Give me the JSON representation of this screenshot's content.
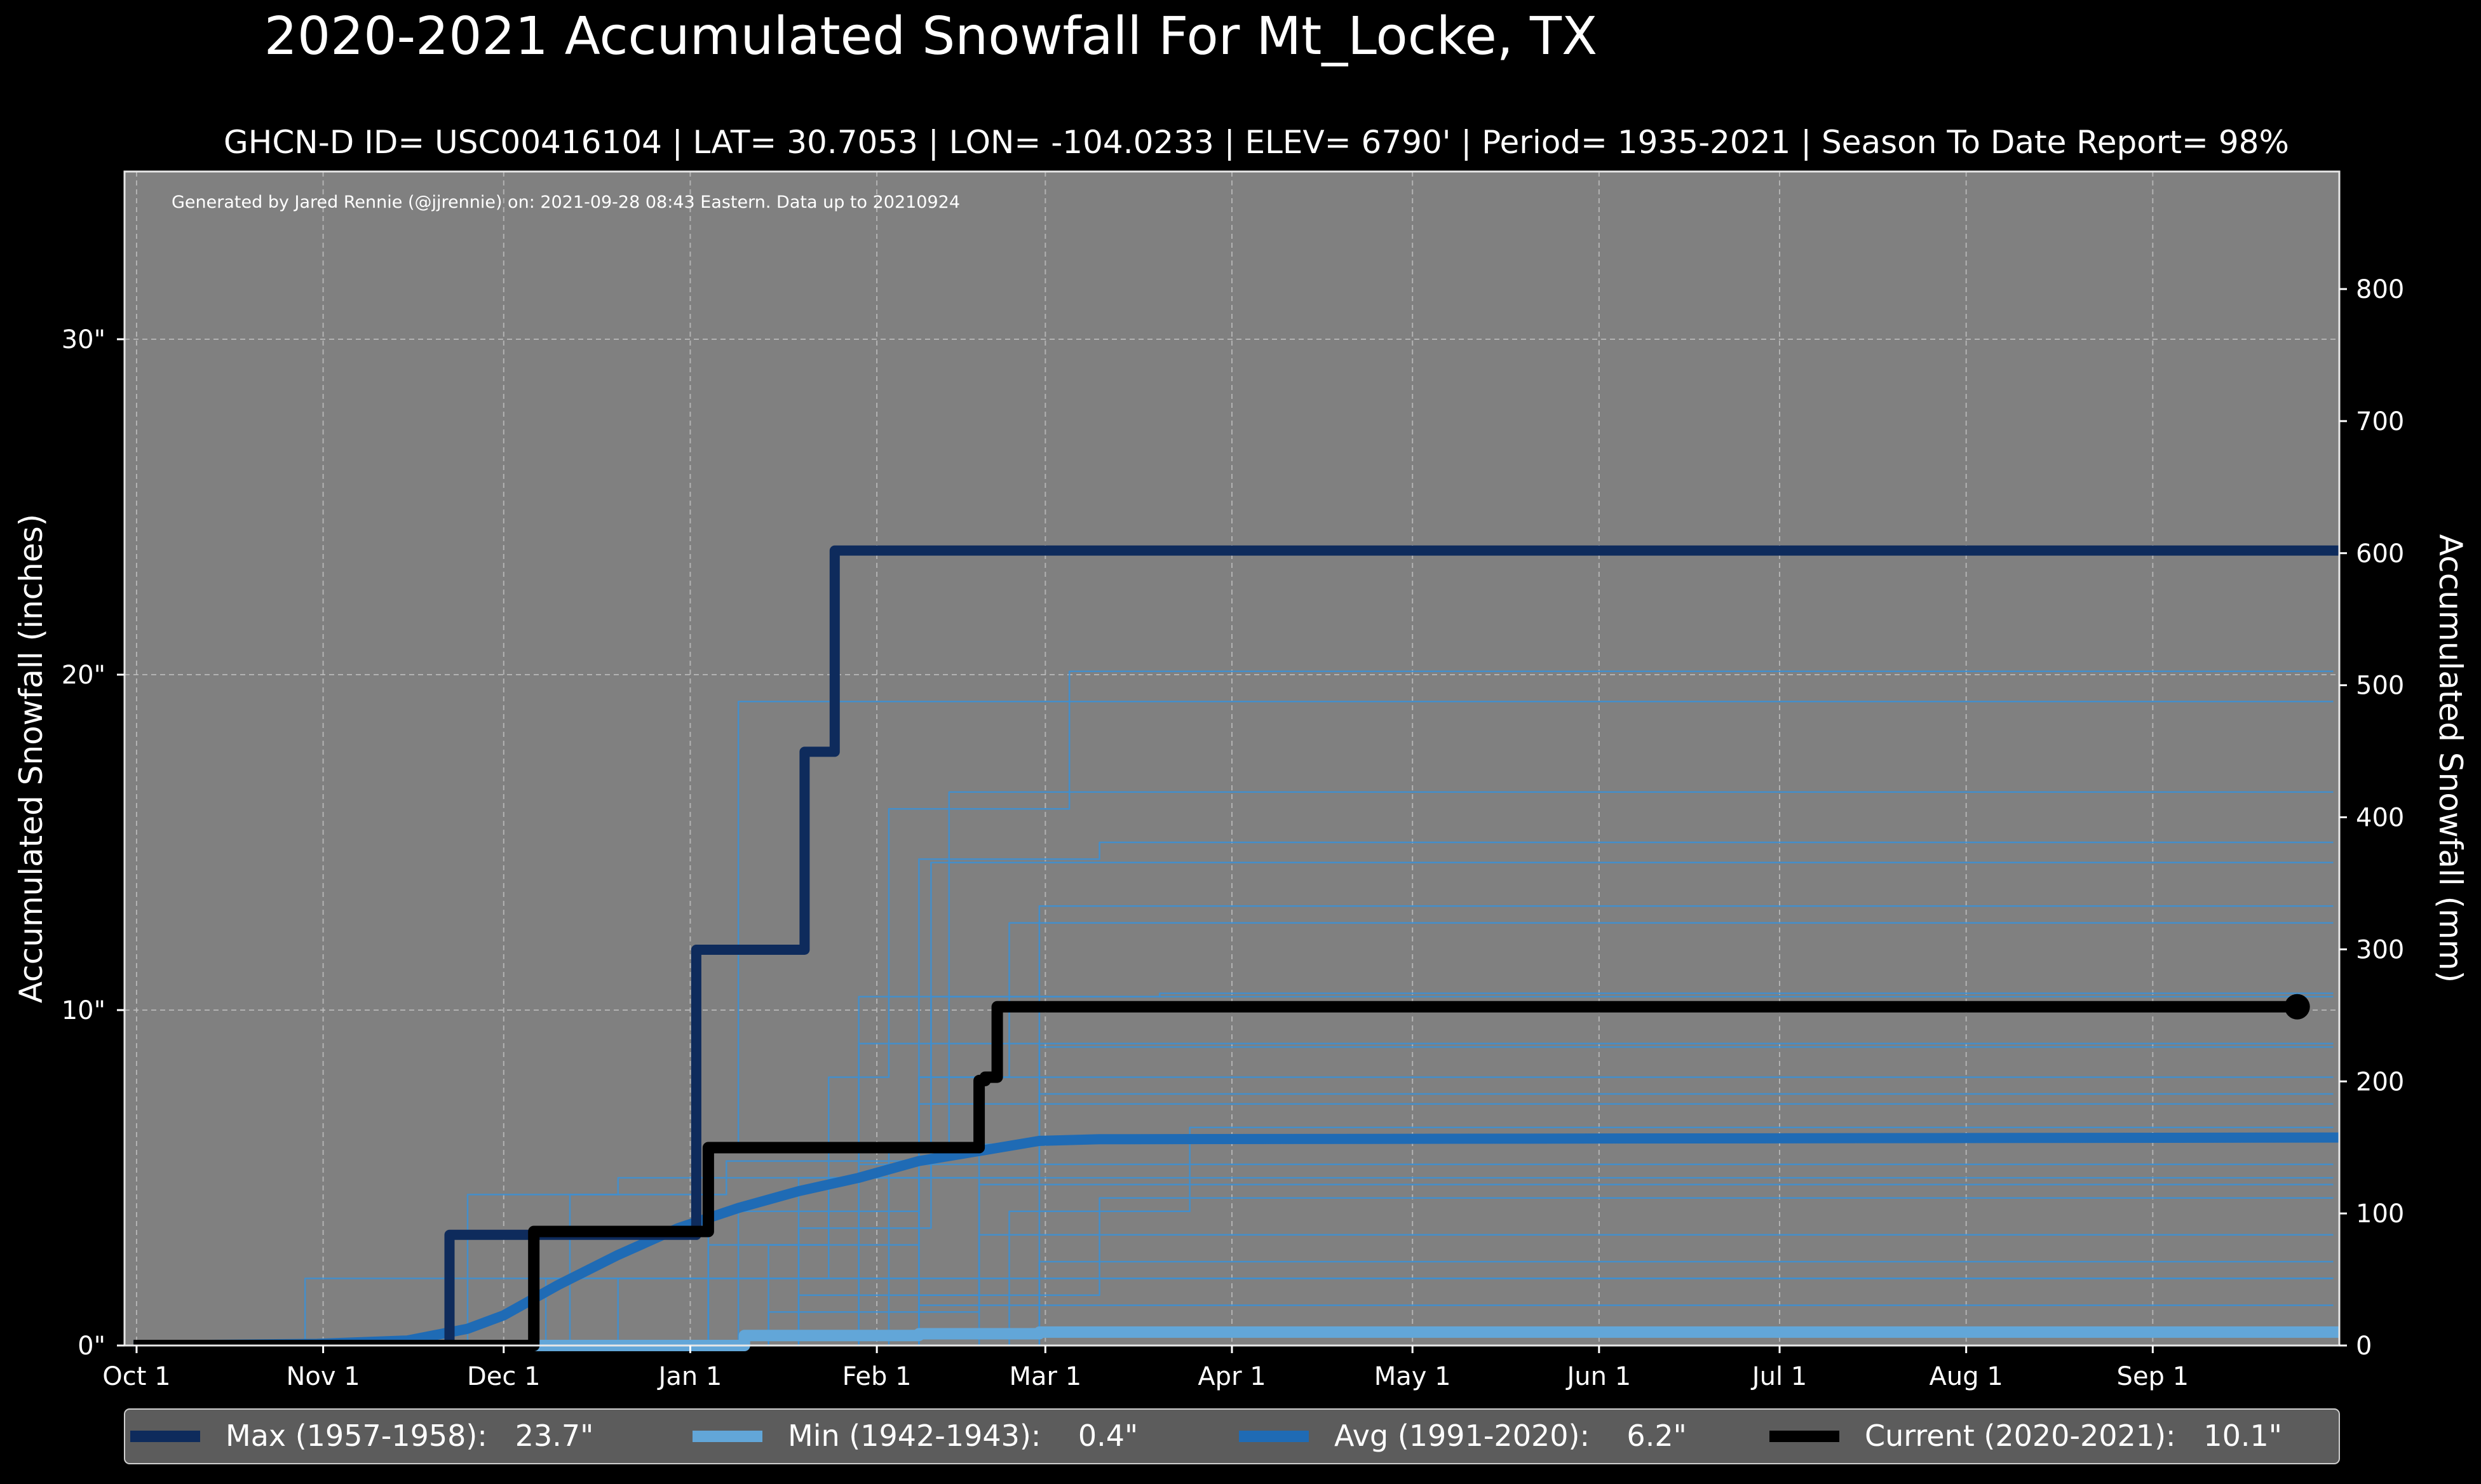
{
  "title": "2020-2021 Accumulated Snowfall For Mt_Locke, TX",
  "subtitle": "GHCN-D ID= USC00416104 | LAT= 30.7053 | LON= -104.0233 | ELEV= 6790' | Period= 1935-2021 | Season To Date Report= 98%",
  "credit": "Generated by Jared Rennie (@jjrennie) on: 2021-09-28 08:43 Eastern. Data up to 20210924",
  "colors": {
    "background": "#000000",
    "plot_bg": "#808080",
    "max": "#0e2b5c",
    "min": "#62a6d8",
    "avg": "#1f6bb5",
    "current": "#000000",
    "history": "#3e8fd0",
    "legend_bg": "#5c5c5c"
  },
  "chart_data": {
    "type": "line",
    "xlabel": "",
    "ylabel": "Accumulated Snowfall (inches)",
    "ylabel_right": "Accumulated Snowfall (mm)",
    "x_unit": "day of season (0 = Oct 1)",
    "xlim": [
      -2,
      366
    ],
    "ylim": [
      0,
      35
    ],
    "ylim_right_mm": [
      0,
      889
    ],
    "grid": true,
    "x_ticks": [
      {
        "day": 0,
        "label": "Oct 1"
      },
      {
        "day": 31,
        "label": "Nov 1"
      },
      {
        "day": 61,
        "label": "Dec 1"
      },
      {
        "day": 92,
        "label": "Jan 1"
      },
      {
        "day": 123,
        "label": "Feb 1"
      },
      {
        "day": 151,
        "label": "Mar 1"
      },
      {
        "day": 182,
        "label": "Apr 1"
      },
      {
        "day": 212,
        "label": "May 1"
      },
      {
        "day": 243,
        "label": "Jun 1"
      },
      {
        "day": 273,
        "label": "Jul 1"
      },
      {
        "day": 304,
        "label": "Aug 1"
      },
      {
        "day": 335,
        "label": "Sep 1"
      }
    ],
    "y_ticks": [
      {
        "value": 0,
        "label": "0\""
      },
      {
        "value": 10,
        "label": "10\""
      },
      {
        "value": 20,
        "label": "20\""
      },
      {
        "value": 30,
        "label": "30\""
      }
    ],
    "y_ticks_right": [
      {
        "value": 0,
        "label": "0"
      },
      {
        "value": 100,
        "label": "100"
      },
      {
        "value": 200,
        "label": "200"
      },
      {
        "value": 300,
        "label": "300"
      },
      {
        "value": 400,
        "label": "400"
      },
      {
        "value": 500,
        "label": "500"
      },
      {
        "value": 600,
        "label": "600"
      },
      {
        "value": 700,
        "label": "700"
      },
      {
        "value": 800,
        "label": "800"
      }
    ],
    "history_series": [
      [
        [
          25,
          0
        ],
        [
          28,
          2.0
        ],
        [
          40,
          2.0
        ],
        [
          365,
          2.0
        ]
      ],
      [
        [
          50,
          0
        ],
        [
          55,
          4.5
        ],
        [
          80,
          5.0
        ],
        [
          120,
          9.0
        ],
        [
          160,
          9.0
        ],
        [
          365,
          9.0
        ]
      ],
      [
        [
          60,
          0
        ],
        [
          68,
          2.0
        ],
        [
          110,
          3.5
        ],
        [
          132,
          10.4
        ],
        [
          170,
          10.5
        ],
        [
          365,
          10.5
        ]
      ],
      [
        [
          85,
          0
        ],
        [
          95,
          6.0
        ],
        [
          100,
          19.2
        ],
        [
          140,
          19.2
        ],
        [
          365,
          19.2
        ]
      ],
      [
        [
          90,
          0
        ],
        [
          105,
          3.0
        ],
        [
          115,
          8.0
        ],
        [
          125,
          16.0
        ],
        [
          150,
          16.0
        ],
        [
          155,
          20.1
        ],
        [
          365,
          20.1
        ]
      ],
      [
        [
          70,
          0
        ],
        [
          100,
          4.0
        ],
        [
          130,
          14.5
        ],
        [
          160,
          15.0
        ],
        [
          365,
          15.0
        ]
      ],
      [
        [
          100,
          0
        ],
        [
          125,
          6.0
        ],
        [
          135,
          16.5
        ],
        [
          365,
          16.5
        ]
      ],
      [
        [
          95,
          0
        ],
        [
          110,
          5.0
        ],
        [
          132,
          14.4
        ],
        [
          365,
          14.4
        ]
      ],
      [
        [
          110,
          0
        ],
        [
          140,
          6.0
        ],
        [
          150,
          13.1
        ],
        [
          365,
          13.1
        ]
      ],
      [
        [
          105,
          0
        ],
        [
          130,
          8.0
        ],
        [
          145,
          12.6
        ],
        [
          365,
          12.6
        ]
      ],
      [
        [
          115,
          0
        ],
        [
          130,
          5.0
        ],
        [
          150,
          8.9
        ],
        [
          365,
          8.9
        ]
      ],
      [
        [
          80,
          0
        ],
        [
          95,
          3.0
        ],
        [
          130,
          7.2
        ],
        [
          365,
          7.2
        ]
      ],
      [
        [
          120,
          0
        ],
        [
          145,
          4.0
        ],
        [
          175,
          6.5
        ],
        [
          365,
          6.5
        ]
      ],
      [
        [
          75,
          0
        ],
        [
          95,
          2.0
        ],
        [
          120,
          5.4
        ],
        [
          365,
          5.4
        ]
      ],
      [
        [
          95,
          0
        ],
        [
          110,
          1.5
        ],
        [
          140,
          4.8
        ],
        [
          365,
          4.8
        ]
      ],
      [
        [
          100,
          0
        ],
        [
          130,
          1.5
        ],
        [
          160,
          4.4
        ],
        [
          365,
          4.4
        ]
      ],
      [
        [
          90,
          0
        ],
        [
          105,
          1.0
        ],
        [
          140,
          3.3
        ],
        [
          365,
          3.3
        ]
      ],
      [
        [
          110,
          0
        ],
        [
          150,
          2.5
        ],
        [
          365,
          2.5
        ]
      ],
      [
        [
          85,
          0
        ],
        [
          120,
          2.0
        ],
        [
          365,
          2.0
        ]
      ],
      [
        [
          100,
          0
        ],
        [
          130,
          1.2
        ],
        [
          365,
          1.2
        ]
      ],
      [
        [
          65,
          0
        ],
        [
          80,
          2.0
        ],
        [
          115,
          5.0
        ],
        [
          365,
          5.0
        ]
      ],
      [
        [
          120,
          0
        ],
        [
          150,
          7.5
        ],
        [
          365,
          7.5
        ]
      ],
      [
        [
          88,
          0
        ],
        [
          120,
          10.4
        ],
        [
          365,
          10.4
        ]
      ],
      [
        [
          60,
          0
        ],
        [
          72,
          4.5
        ],
        [
          98,
          5.5
        ],
        [
          130,
          8.0
        ],
        [
          365,
          8.0
        ]
      ]
    ],
    "series": [
      {
        "name": "Max (1957-1958)",
        "legend_label": "Max (1957-1958):   23.7\"",
        "final_value": 23.7,
        "color": "#0e2b5c",
        "points": [
          [
            -0.5,
            0
          ],
          [
            50,
            0
          ],
          [
            52,
            3.3
          ],
          [
            91,
            3.3
          ],
          [
            92,
            3.3
          ],
          [
            93,
            11.8
          ],
          [
            110,
            11.8
          ],
          [
            111,
            17.7
          ],
          [
            114,
            17.7
          ],
          [
            116,
            23.7
          ],
          [
            366,
            23.7
          ]
        ]
      },
      {
        "name": "Min (1942-1943)",
        "legend_label": "Min (1942-1943):    0.4\"",
        "final_value": 0.4,
        "color": "#62a6d8",
        "points": [
          [
            -0.5,
            0
          ],
          [
            100,
            0
          ],
          [
            101,
            0.3
          ],
          [
            130,
            0.35
          ],
          [
            150,
            0.4
          ],
          [
            366,
            0.4
          ]
        ]
      },
      {
        "name": "Avg (1991-2020)",
        "legend_label": "Avg (1991-2020):    6.2\"",
        "final_value": 6.2,
        "color": "#1f6bb5",
        "points": [
          [
            -0.5,
            0
          ],
          [
            30,
            0.05
          ],
          [
            45,
            0.15
          ],
          [
            55,
            0.5
          ],
          [
            61,
            0.9
          ],
          [
            70,
            1.8
          ],
          [
            80,
            2.7
          ],
          [
            90,
            3.5
          ],
          [
            100,
            4.1
          ],
          [
            110,
            4.6
          ],
          [
            120,
            5.0
          ],
          [
            130,
            5.5
          ],
          [
            140,
            5.8
          ],
          [
            150,
            6.1
          ],
          [
            160,
            6.15
          ],
          [
            366,
            6.2
          ]
        ]
      },
      {
        "name": "Current (2020-2021)",
        "legend_label": "Current (2020-2021):   10.1\"",
        "final_value": 10.1,
        "color": "#000000",
        "points": [
          [
            -0.5,
            0
          ],
          [
            65,
            0
          ],
          [
            66,
            3.4
          ],
          [
            94,
            3.4
          ],
          [
            95,
            5.9
          ],
          [
            139,
            5.9
          ],
          [
            140,
            7.9
          ],
          [
            141,
            8.0
          ],
          [
            143,
            10.1
          ],
          [
            359,
            10.1
          ]
        ]
      }
    ],
    "legend": {
      "position": "bottom",
      "entries": [
        {
          "label": "Max (1957-1958):   23.7\"",
          "color": "#0e2b5c"
        },
        {
          "label": "Min (1942-1943):    0.4\"",
          "color": "#62a6d8"
        },
        {
          "label": "Avg (1991-2020):    6.2\"",
          "color": "#1f6bb5"
        },
        {
          "label": "Current (2020-2021):   10.1\"",
          "color": "#000000"
        }
      ]
    }
  }
}
